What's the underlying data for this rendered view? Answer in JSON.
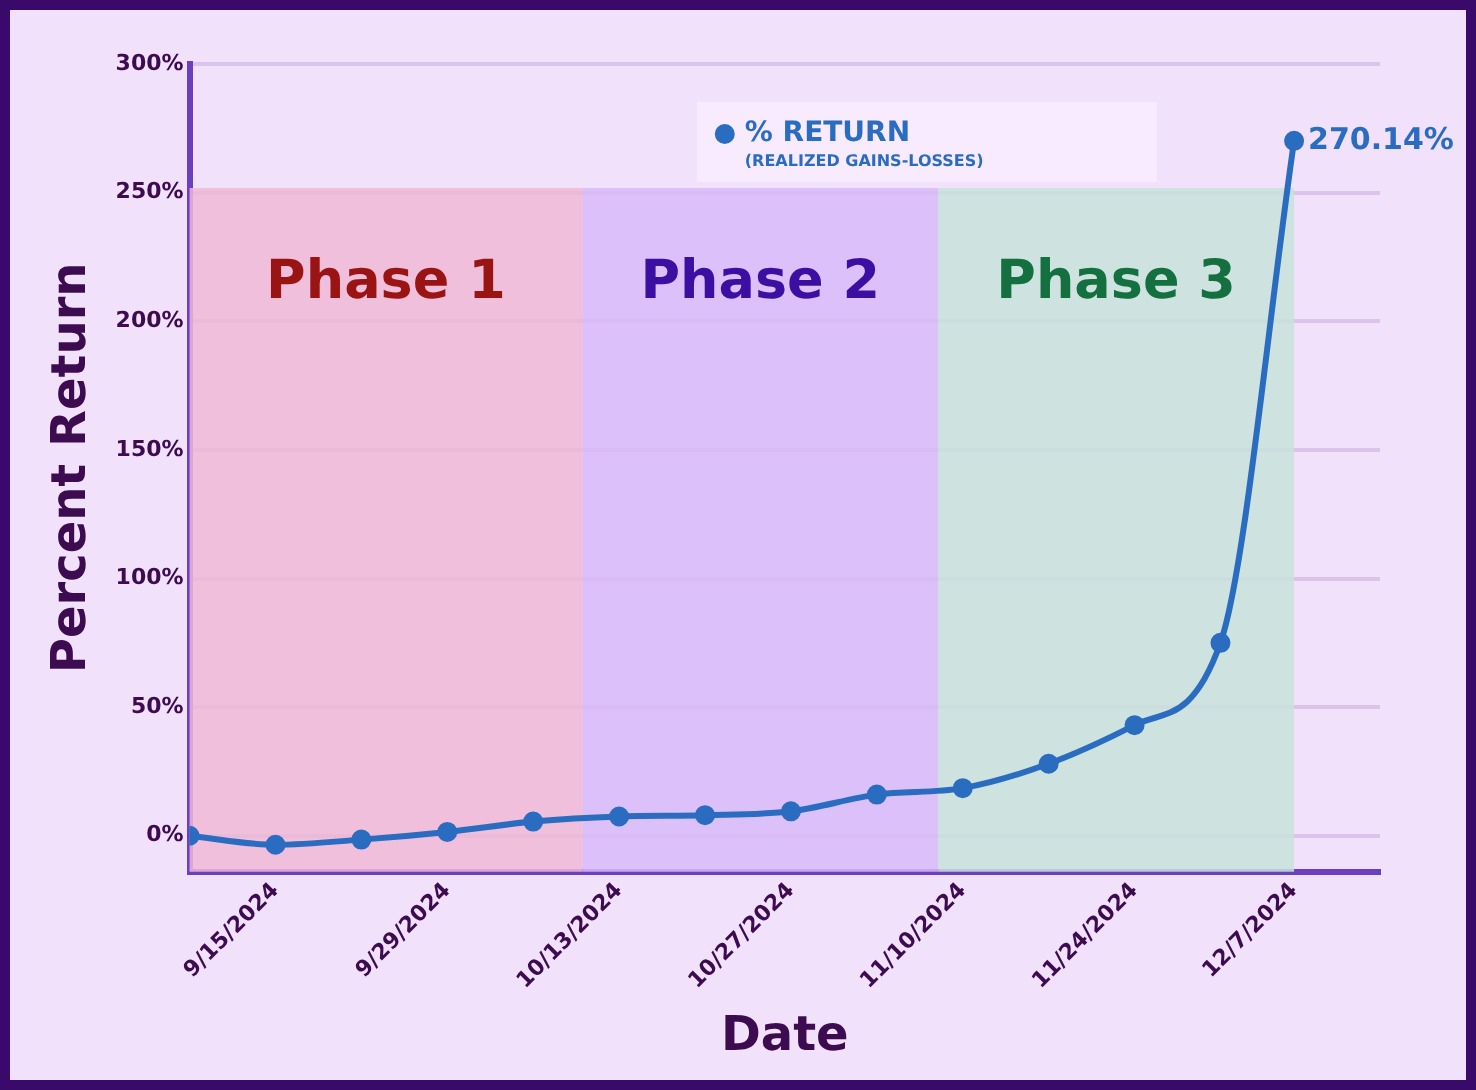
{
  "chart_data": {
    "type": "line",
    "xlabel": "Date",
    "ylabel": "Percent Return",
    "legend_title": "(REALIZED GAINS-LOSSES)",
    "x": [
      "2024-09-08",
      "2024-09-15",
      "2024-09-22",
      "2024-09-29",
      "2024-10-06",
      "2024-10-13",
      "2024-10-20",
      "2024-10-27",
      "2024-11-03",
      "2024-11-10",
      "2024-11-17",
      "2024-11-24",
      "2024-12-01",
      "2024-12-07"
    ],
    "series": [
      {
        "name": "% RETURN",
        "color": "#2a6cc0",
        "values": [
          0,
          -3.5,
          -1.5,
          1.5,
          5.5,
          7.5,
          8,
          9.5,
          16,
          18.5,
          28,
          43,
          75,
          270.14
        ],
        "value_labels": [
          null,
          null,
          null,
          null,
          null,
          null,
          null,
          null,
          null,
          null,
          null,
          null,
          null,
          "270.14%"
        ]
      }
    ],
    "xlim": [
      "2024-09-08",
      "2024-12-14"
    ],
    "xticks": [
      {
        "value": "2024-09-15",
        "label": "9/15/2024"
      },
      {
        "value": "2024-09-29",
        "label": "9/29/2024"
      },
      {
        "value": "2024-10-13",
        "label": "10/13/2024"
      },
      {
        "value": "2024-10-27",
        "label": "10/27/2024"
      },
      {
        "value": "2024-11-10",
        "label": "11/10/2024"
      },
      {
        "value": "2024-11-24",
        "label": "11/24/2024"
      },
      {
        "value": "2024-12-07",
        "label": "12/7/2024"
      }
    ],
    "ylim": [
      -14,
      300
    ],
    "yticks": [
      {
        "value": 0,
        "label": "0%"
      },
      {
        "value": 50,
        "label": "50%"
      },
      {
        "value": 100,
        "label": "100%"
      },
      {
        "value": 150,
        "label": "150%"
      },
      {
        "value": 200,
        "label": "200%"
      },
      {
        "value": 250,
        "label": "250%"
      },
      {
        "value": 300,
        "label": "300%"
      }
    ],
    "bands": [
      {
        "axis": "x",
        "from": "2024-09-08",
        "to": "2024-10-10",
        "label": "Phase 1",
        "color": "#efb8d6"
      },
      {
        "axis": "x",
        "from": "2024-10-10",
        "to": "2024-11-08",
        "label": "Phase 2",
        "color": "#d8baf8"
      },
      {
        "axis": "x",
        "from": "2024-11-08",
        "to": "2024-12-07",
        "label": "Phase 3",
        "color": "#c8e2da"
      }
    ],
    "grid": "y",
    "legend": "top",
    "marker": "circle",
    "line_style": "solid"
  }
}
